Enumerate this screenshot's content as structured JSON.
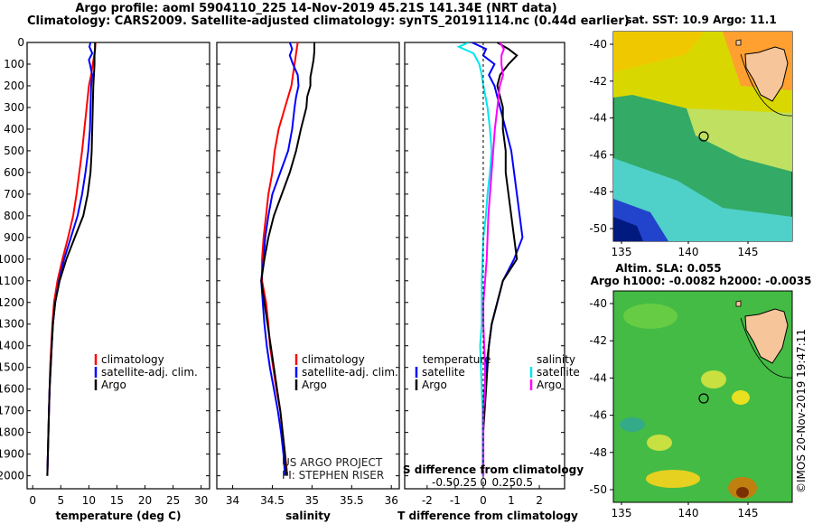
{
  "header": {
    "line1": "Argo profile: aoml 5904110_225 14-Nov-2019 45.21S 141.34E (NRT data)",
    "line2": "Climatology: CARS2009. Satellite-adjusted climatology: synTS_20191114.nc (0.44d earlier)"
  },
  "colors": {
    "climatology": "#ff0000",
    "satellite": "#0000ff",
    "argo": "#000000",
    "sat_sal_diff": "#00e5ee",
    "argo_sal_diff": "#ff00ff"
  },
  "depth_ticks": [
    "0",
    "100",
    "200",
    "300",
    "400",
    "500",
    "600",
    "700",
    "800",
    "900",
    "1000",
    "1100",
    "1200",
    "1300",
    "1400",
    "1500",
    "1600",
    "1700",
    "1800",
    "1900",
    "2000"
  ],
  "temp_ticks": [
    "0",
    "5",
    "10",
    "15",
    "20",
    "25",
    "30"
  ],
  "sal_ticks": [
    "34",
    "34.5",
    "35",
    "35.5",
    "36"
  ],
  "tdiff_ticks": [
    "-2",
    "-1",
    "0",
    "1",
    "2"
  ],
  "sdiff_ticks": [
    "-0.5",
    "-0.25",
    "0",
    "0.25",
    "0.5"
  ],
  "credit": {
    "line1": "US ARGO PROJECT",
    "line2": "PI: STEPHEN RISER"
  },
  "watermark": "©IMOS 20-Nov-2019 19:47:11",
  "legend_temp": {
    "items": [
      "climatology",
      "satellite-adj. clim.",
      "Argo"
    ]
  },
  "legend_sal": {
    "items": [
      "climatology",
      "satellite-adj. clim.",
      "Argo"
    ]
  },
  "legend_diff": {
    "temperature": "temperature",
    "salinity": "salinity",
    "satellite": "satellite",
    "argo": "Argo"
  },
  "map_top": {
    "title": "sat. SST: 10.9 Argo: 11.1",
    "lat_ticks": [
      "-40",
      "-42",
      "-44",
      "-46",
      "-48",
      "-50"
    ],
    "lon_ticks": [
      "135",
      "140",
      "145"
    ]
  },
  "map_bottom": {
    "title1": "Altim. SLA: 0.055",
    "title2": "Argo h1000: -0.0082 h2000: -0.0035",
    "lat_ticks": [
      "-40",
      "-42",
      "-44",
      "-46",
      "-48",
      "-50"
    ],
    "lon_ticks": [
      "135",
      "140",
      "145"
    ]
  },
  "chart_data": [
    {
      "type": "line",
      "xlabel": "temperature (deg C)",
      "ylabel": "",
      "xlim": [
        -1,
        31.5
      ],
      "ylim": [
        2060,
        0
      ],
      "series": [
        {
          "name": "climatology",
          "color": "#ff0000",
          "depth": [
            0,
            50,
            100,
            150,
            200,
            300,
            400,
            500,
            600,
            700,
            800,
            900,
            1000,
            1100,
            1200,
            1300,
            1400,
            1500,
            1600,
            1700,
            1800,
            1900,
            2000
          ],
          "values": [
            11.2,
            11.0,
            10.7,
            10.4,
            10.0,
            9.6,
            9.2,
            8.8,
            8.3,
            7.8,
            7.2,
            6.3,
            5.3,
            4.4,
            3.8,
            3.5,
            3.3,
            3.1,
            3.0,
            2.9,
            2.8,
            2.7,
            2.6
          ]
        },
        {
          "name": "satellite-adj. clim.",
          "color": "#0000ff",
          "depth": [
            0,
            20,
            50,
            80,
            100,
            150,
            200,
            300,
            400,
            500,
            600,
            700,
            800,
            900,
            1000,
            1100,
            1200,
            1300,
            1400,
            1500,
            1600,
            1700,
            1800,
            1900,
            2000
          ],
          "values": [
            10.3,
            10.1,
            10.6,
            10.0,
            10.2,
            10.6,
            10.4,
            10.3,
            10.2,
            9.9,
            9.4,
            8.8,
            8.0,
            6.8,
            5.6,
            4.7,
            4.0,
            3.6,
            3.4,
            3.2,
            3.0,
            2.9,
            2.8,
            2.7,
            2.6
          ]
        },
        {
          "name": "Argo",
          "color": "#000000",
          "depth": [
            0,
            30,
            60,
            100,
            150,
            200,
            300,
            400,
            500,
            600,
            700,
            800,
            900,
            1000,
            1100,
            1200,
            1300,
            1400,
            1500,
            1600,
            1700,
            1800,
            1900,
            2000
          ],
          "values": [
            11.1,
            11.1,
            11.0,
            11.0,
            10.9,
            10.8,
            10.7,
            10.6,
            10.5,
            10.3,
            9.8,
            9.0,
            7.5,
            6.0,
            4.8,
            4.0,
            3.6,
            3.4,
            3.2,
            3.0,
            2.9,
            2.8,
            2.7,
            2.6
          ]
        }
      ]
    },
    {
      "type": "line",
      "xlabel": "salinity",
      "ylabel": "",
      "xlim": [
        33.8,
        36.1
      ],
      "ylim": [
        2060,
        0
      ],
      "series": [
        {
          "name": "climatology",
          "color": "#ff0000",
          "depth": [
            0,
            50,
            100,
            150,
            200,
            300,
            400,
            500,
            600,
            700,
            800,
            900,
            1000,
            1100,
            1200,
            1300,
            1400,
            1500,
            1600,
            1700,
            1800,
            1900,
            2000
          ],
          "values": [
            34.82,
            34.8,
            34.78,
            34.76,
            34.74,
            34.66,
            34.58,
            34.53,
            34.5,
            34.45,
            34.42,
            34.39,
            34.37,
            34.37,
            34.42,
            34.45,
            34.47,
            34.51,
            34.55,
            34.6,
            34.63,
            34.66,
            34.69
          ]
        },
        {
          "name": "satellite-adj. clim.",
          "color": "#0000ff",
          "depth": [
            0,
            30,
            60,
            100,
            150,
            200,
            250,
            300,
            400,
            500,
            600,
            700,
            800,
            900,
            1000,
            1100,
            1200,
            1300,
            1400,
            1500,
            1600,
            1700,
            1800,
            1900,
            2000
          ],
          "values": [
            34.72,
            34.75,
            34.72,
            34.76,
            34.82,
            34.83,
            34.8,
            34.78,
            34.75,
            34.7,
            34.6,
            34.5,
            34.45,
            34.41,
            34.39,
            34.36,
            34.38,
            34.4,
            34.43,
            34.47,
            34.52,
            34.57,
            34.61,
            34.64,
            34.66
          ]
        },
        {
          "name": "Argo",
          "color": "#000000",
          "depth": [
            0,
            40,
            80,
            120,
            160,
            200,
            250,
            300,
            400,
            500,
            600,
            700,
            800,
            900,
            1000,
            1100,
            1200,
            1300,
            1400,
            1500,
            1600,
            1700,
            1800,
            1900,
            2000
          ],
          "values": [
            35.03,
            35.03,
            35.02,
            35.0,
            34.98,
            34.98,
            34.94,
            34.93,
            34.86,
            34.8,
            34.72,
            34.62,
            34.52,
            34.45,
            34.4,
            34.36,
            34.4,
            34.44,
            34.48,
            34.52,
            34.56,
            34.6,
            34.63,
            34.66,
            34.68
          ]
        }
      ]
    },
    {
      "type": "line",
      "xlabel": "T difference from climatology",
      "ylabel": "",
      "xlim": [
        -2.8,
        2.9
      ],
      "ylim": [
        2060,
        0
      ],
      "series": [
        {
          "name": "temperature satellite",
          "color": "#0000ff",
          "depth": [
            0,
            30,
            60,
            100,
            150,
            200,
            300,
            400,
            500,
            600,
            700,
            800,
            900,
            1000,
            1100,
            1200,
            1300,
            1400,
            1500,
            1600,
            1700,
            1800,
            1900,
            2000
          ],
          "values": [
            -0.4,
            0.1,
            0.0,
            0.4,
            0.2,
            0.4,
            0.6,
            0.8,
            1.0,
            1.1,
            1.2,
            1.3,
            1.4,
            1.1,
            0.7,
            0.5,
            0.3,
            0.2,
            0.1,
            0.05,
            0.0,
            0.0,
            0.0,
            0.0
          ]
        },
        {
          "name": "temperature Argo",
          "color": "#000000",
          "depth": [
            0,
            30,
            60,
            100,
            150,
            200,
            300,
            400,
            500,
            600,
            700,
            800,
            900,
            1000,
            1100,
            1200,
            1300,
            1400,
            1500,
            1600,
            1700,
            1800,
            1900,
            2000
          ],
          "values": [
            0.5,
            0.9,
            1.2,
            0.9,
            0.6,
            0.5,
            0.7,
            0.7,
            0.8,
            0.8,
            0.9,
            1.0,
            1.1,
            1.2,
            0.7,
            0.5,
            0.3,
            0.2,
            0.15,
            0.1,
            0.05,
            0.0,
            0.0,
            0.0
          ]
        },
        {
          "name": "salinity satellite (top S-difference axis)",
          "color": "#00e5ee",
          "depth": [
            0,
            20,
            50,
            100,
            150,
            200,
            300,
            400,
            500,
            600,
            700,
            800,
            900,
            1000,
            1100,
            1200,
            1300,
            1400,
            1500,
            1600,
            1700,
            1800,
            1900,
            2000
          ],
          "values": [
            -0.18,
            -0.3,
            -0.12,
            -0.05,
            -0.02,
            0.0,
            0.05,
            0.08,
            0.1,
            0.08,
            0.05,
            0.03,
            0.0,
            -0.01,
            -0.02,
            -0.02,
            -0.02,
            -0.04,
            -0.03,
            -0.02,
            -0.01,
            -0.01,
            -0.01,
            -0.01
          ]
        },
        {
          "name": "salinity Argo (top S-difference axis)",
          "color": "#ff00ff",
          "depth": [
            0,
            30,
            60,
            100,
            150,
            200,
            300,
            400,
            500,
            600,
            700,
            800,
            900,
            1000,
            1100,
            1200,
            1300,
            1400,
            1500,
            1600,
            1700,
            1800,
            1900,
            2000
          ],
          "values": [
            0.2,
            0.25,
            0.22,
            0.22,
            0.24,
            0.2,
            0.17,
            0.14,
            0.12,
            0.1,
            0.08,
            0.06,
            0.05,
            0.04,
            0.02,
            0.0,
            0.0,
            0.01,
            0.02,
            0.02,
            0.0,
            0.0,
            0.0,
            0.0
          ]
        }
      ]
    }
  ]
}
